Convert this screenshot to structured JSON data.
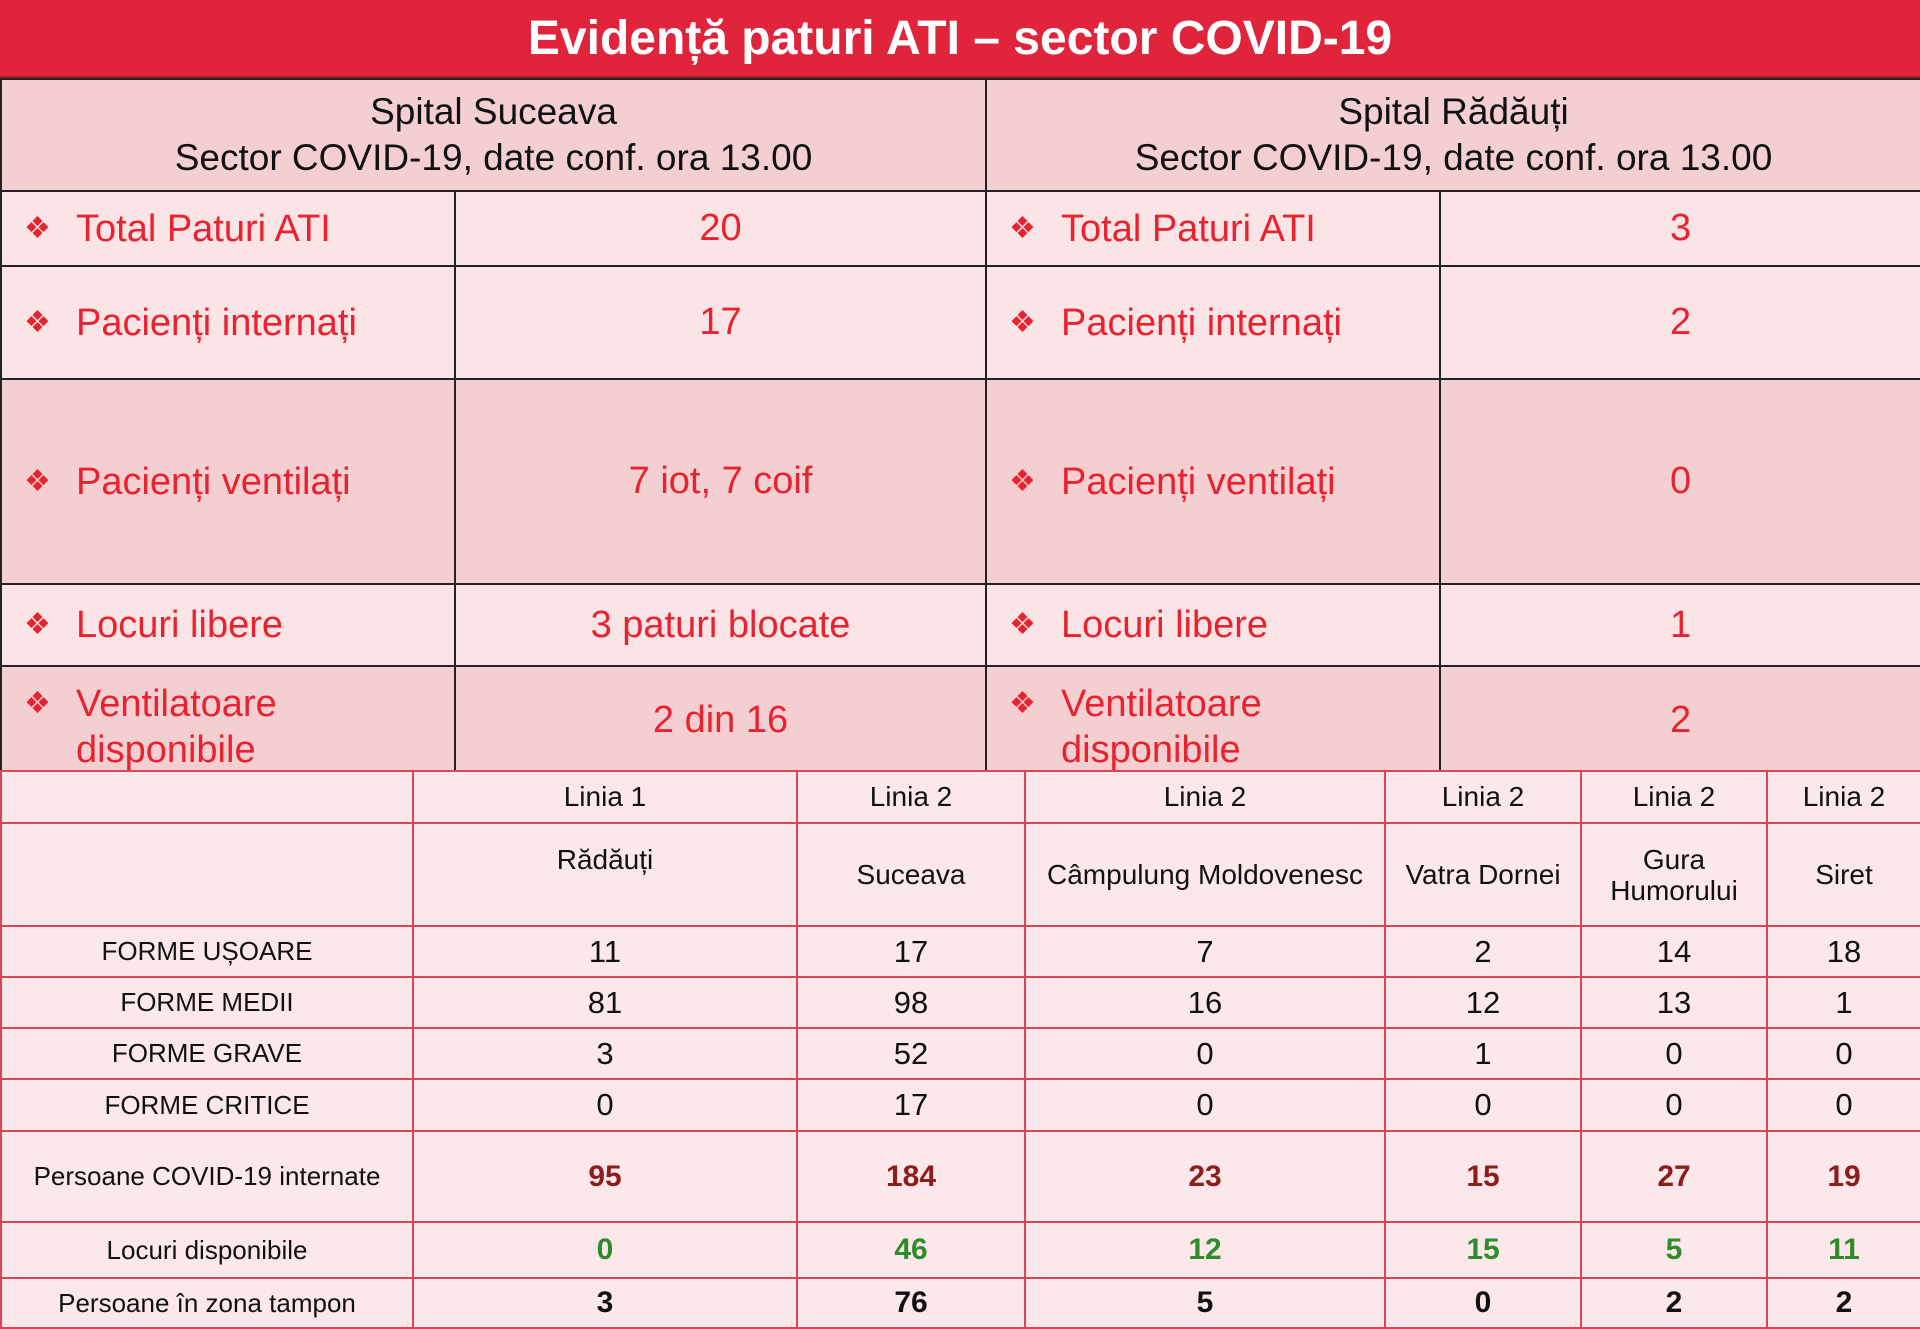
{
  "title": "Evidență paturi ATI – sector COVID-19",
  "hospitals": [
    {
      "name": "Spital Suceava",
      "subtitle": "Sector COVID-19, date conf. ora 13.00"
    },
    {
      "name": "Spital Rădăuți",
      "subtitle": "Sector COVID-19, date conf. ora 13.00"
    }
  ],
  "bullet": "❖",
  "ati_rows": [
    {
      "label": "Total Paturi ATI",
      "suceava": "20",
      "radauti": "3"
    },
    {
      "label": "Pacienți internați",
      "suceava": "17",
      "radauti": "2"
    },
    {
      "label": "Pacienți ventilați",
      "suceava": "7 iot, 7 coif",
      "radauti": "0"
    },
    {
      "label": "Locuri libere",
      "suceava": "3 paturi blocate",
      "radauti": "1"
    },
    {
      "label_line1": "Ventilatoare",
      "label_line2": "disponibile",
      "suceava": "2 din 16",
      "radauti": "2"
    }
  ],
  "lines_table": {
    "columns": [
      {
        "line": "Linia 1",
        "city": "Rădăuți"
      },
      {
        "line": "Linia 2",
        "city": "Suceava"
      },
      {
        "line": "Linia 2",
        "city": "Câmpulung Moldovenesc"
      },
      {
        "line": "Linia 2",
        "city": "Vatra Dornei"
      },
      {
        "line": "Linia 2",
        "city_line1": "Gura",
        "city_line2": "Humorului"
      },
      {
        "line": "Linia 2",
        "city": "Siret"
      }
    ],
    "rows": [
      {
        "label": "FORME UȘOARE",
        "values": [
          "11",
          "17",
          "7",
          "2",
          "14",
          "18"
        ]
      },
      {
        "label": "FORME MEDII",
        "values": [
          "81",
          "98",
          "16",
          "12",
          "13",
          "1"
        ]
      },
      {
        "label": "FORME GRAVE",
        "values": [
          "3",
          "52",
          "0",
          "1",
          "0",
          "0"
        ]
      },
      {
        "label": "FORME CRITICE",
        "values": [
          "0",
          "17",
          "0",
          "0",
          "0",
          "0"
        ]
      },
      {
        "label": "Persoane COVID-19 internate",
        "values": [
          "95",
          "184",
          "23",
          "15",
          "27",
          "19"
        ]
      },
      {
        "label": "Locuri disponibile",
        "values": [
          "0",
          "46",
          "12",
          "15",
          "5",
          "11"
        ]
      },
      {
        "label": "Persoane în zona tampon",
        "values": [
          "3",
          "76",
          "5",
          "0",
          "2",
          "2"
        ]
      }
    ]
  },
  "colors": {
    "title_bg": "#e0243c",
    "ati_text": "#e8232f",
    "internate_text": "#8e1c1c",
    "disponibile_text": "#2e8c2b"
  }
}
